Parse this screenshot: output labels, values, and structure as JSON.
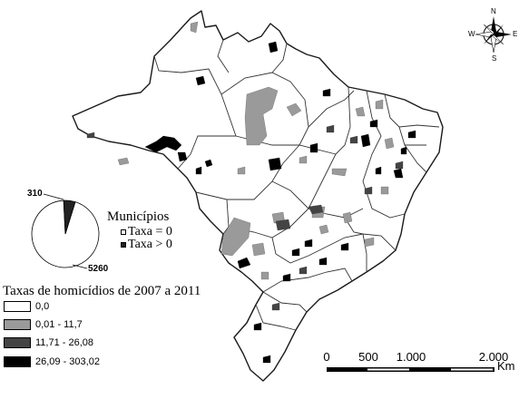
{
  "legend": {
    "title": "Taxas de homicídios de 2007 a 2011",
    "classes": [
      {
        "label": "0,0",
        "color": "#ffffff"
      },
      {
        "label": "0,01 - 11,7",
        "color": "#9a9a9a"
      },
      {
        "label": "11,71 - 26,08",
        "color": "#444444"
      },
      {
        "label": "26,09 - 303,02",
        "color": "#000000"
      }
    ]
  },
  "pie": {
    "title": "Municípios",
    "slices": [
      {
        "label": "5260",
        "value": 5260,
        "legend": "Taxa = 0",
        "color": "#ffffff"
      },
      {
        "label": "310",
        "value": 310,
        "legend": "Taxa > 0",
        "color": "#222222"
      }
    ]
  },
  "scale_bar": {
    "ticks": [
      "0",
      "500",
      "1.000",
      "2.000"
    ],
    "unit": "Km"
  },
  "compass": {
    "n": "N",
    "s": "S",
    "e": "E",
    "w": "W"
  },
  "colors": {
    "land": "#ffffff",
    "border": "#222222",
    "ocean": "#ffffff"
  }
}
